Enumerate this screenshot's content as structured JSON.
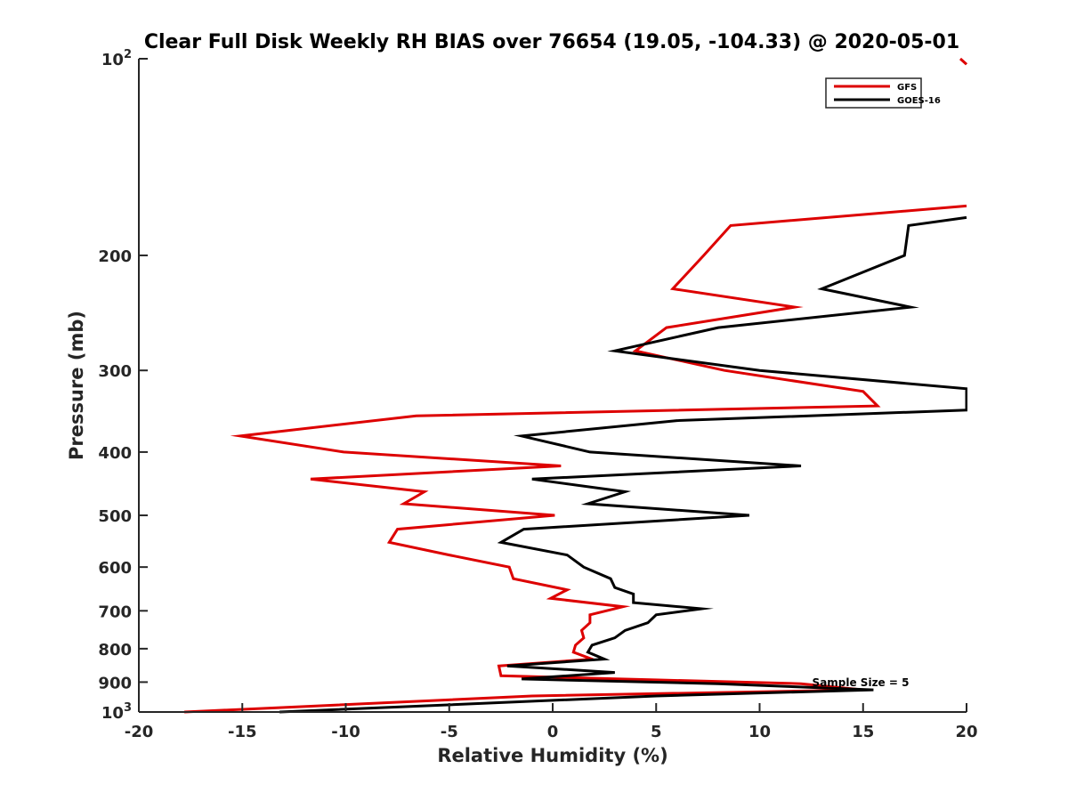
{
  "chart_data": {
    "type": "line",
    "title": "Clear Full Disk Weekly RH BIAS over 76654 (19.05, -104.33) @ 2020-05-01",
    "xlabel": "Relative Humidity (%)",
    "ylabel": "Pressure (mb)",
    "xlim": [
      -20,
      20
    ],
    "ylim": [
      100,
      1000
    ],
    "y_scale": "log",
    "y_reversed": true,
    "x_ticks": [
      -20,
      -15,
      -10,
      -5,
      0,
      5,
      10,
      15,
      20
    ],
    "x_tick_labels": [
      "-20",
      "-15",
      "-10",
      "-5",
      "0",
      "5",
      "10",
      "15",
      "20"
    ],
    "y_ticks": [
      200,
      300,
      400,
      500,
      600,
      700,
      800,
      900
    ],
    "y_tick_labels": [
      "200",
      "300",
      "400",
      "500",
      "600",
      "700",
      "800",
      "900"
    ],
    "y_end_ticks": [
      {
        "value": 100,
        "base": "10",
        "exp": "2"
      },
      {
        "value": 1000,
        "base": "10",
        "exp": "3"
      }
    ],
    "grid": false,
    "legend_position": "top-right",
    "annotation": "Sample Size = 5",
    "series": [
      {
        "name": "GFS",
        "color": "#dd0000",
        "points": [
          [
            20.0,
            168
          ],
          [
            8.6,
            180
          ],
          [
            7.3,
            200
          ],
          [
            5.8,
            225
          ],
          [
            11.7,
            240
          ],
          [
            5.5,
            258
          ],
          [
            4.0,
            280
          ],
          [
            8.3,
            300
          ],
          [
            15.0,
            323
          ],
          [
            15.7,
            340
          ],
          [
            -6.6,
            352
          ],
          [
            -15.1,
            378
          ],
          [
            -10.1,
            400
          ],
          [
            0.4,
            420
          ],
          [
            -11.7,
            440
          ],
          [
            -6.2,
            460
          ],
          [
            -7.2,
            480
          ],
          [
            0.1,
            500
          ],
          [
            -7.5,
            525
          ],
          [
            -7.9,
            550
          ],
          [
            -5.0,
            575
          ],
          [
            -2.1,
            600
          ],
          [
            -1.9,
            625
          ],
          [
            0.7,
            650
          ],
          [
            -0.1,
            670
          ],
          [
            3.4,
            690
          ],
          [
            1.8,
            710
          ],
          [
            1.8,
            730
          ],
          [
            1.4,
            750
          ],
          [
            1.5,
            770
          ],
          [
            1.1,
            790
          ],
          [
            1.0,
            810
          ],
          [
            1.9,
            830
          ],
          [
            -2.6,
            850
          ],
          [
            -2.5,
            880
          ],
          [
            12.0,
            905
          ],
          [
            15.0,
            925
          ],
          [
            -1.0,
            945
          ],
          [
            -17.8,
            1000
          ]
        ]
      },
      {
        "name": "GOES-16",
        "color": "#000000",
        "points": [
          [
            20.0,
            175
          ],
          [
            17.2,
            180
          ],
          [
            17.0,
            200
          ],
          [
            13.0,
            225
          ],
          [
            17.3,
            240
          ],
          [
            8.0,
            258
          ],
          [
            3.0,
            280
          ],
          [
            10.0,
            300
          ],
          [
            20.0,
            320
          ],
          [
            20.0,
            345
          ],
          [
            6.0,
            358
          ],
          [
            -1.5,
            378
          ],
          [
            1.8,
            400
          ],
          [
            12.0,
            420
          ],
          [
            -1.0,
            440
          ],
          [
            3.5,
            460
          ],
          [
            1.7,
            480
          ],
          [
            9.5,
            500
          ],
          [
            -1.4,
            525
          ],
          [
            -2.5,
            550
          ],
          [
            0.7,
            575
          ],
          [
            1.5,
            600
          ],
          [
            2.8,
            625
          ],
          [
            3.0,
            645
          ],
          [
            3.9,
            660
          ],
          [
            3.9,
            680
          ],
          [
            7.2,
            695
          ],
          [
            5.0,
            710
          ],
          [
            4.6,
            730
          ],
          [
            3.5,
            750
          ],
          [
            3.0,
            770
          ],
          [
            1.9,
            790
          ],
          [
            1.7,
            810
          ],
          [
            2.5,
            830
          ],
          [
            -2.2,
            850
          ],
          [
            3.0,
            870
          ],
          [
            -1.5,
            890
          ],
          [
            8.0,
            905
          ],
          [
            15.5,
            925
          ],
          [
            5.0,
            945
          ],
          [
            -13.2,
            1000
          ]
        ]
      }
    ],
    "extra_segments": [
      {
        "series": "GFS",
        "points": [
          [
            19.7,
            100
          ],
          [
            20.0,
            102
          ]
        ]
      }
    ]
  }
}
